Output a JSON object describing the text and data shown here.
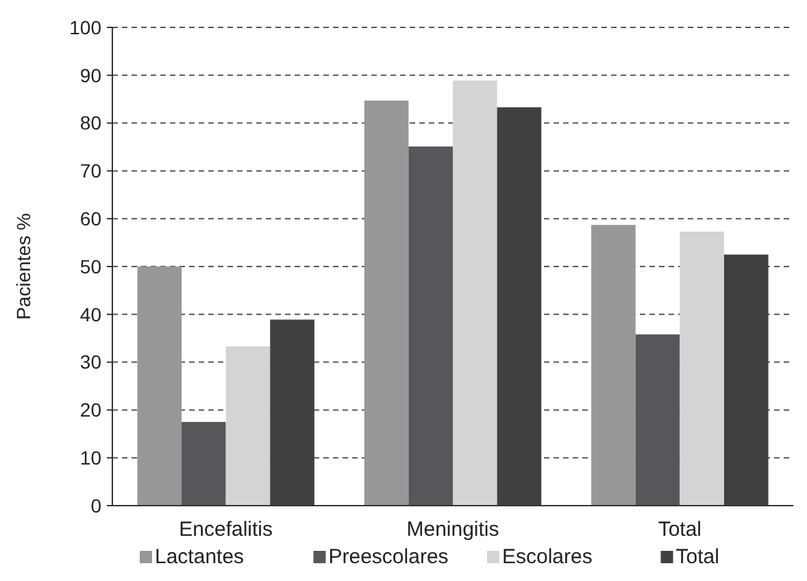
{
  "chart_data": {
    "type": "bar",
    "ylabel": "Pacientes %",
    "categories": [
      "Encefalitis",
      "Meningitis",
      "Total"
    ],
    "series": [
      {
        "name": "Lactantes",
        "color": "#969798",
        "values": [
          50,
          84.7,
          58.7
        ]
      },
      {
        "name": "Preescolares",
        "color": "#56575a",
        "values": [
          17.5,
          75.1,
          35.8
        ]
      },
      {
        "name": "Escolares",
        "color": "#d3d4d6",
        "values": [
          33.3,
          88.9,
          57.3
        ]
      },
      {
        "name": "Total",
        "color": "#404040",
        "values": [
          38.9,
          83.3,
          52.5
        ]
      }
    ],
    "ylim": [
      0,
      100
    ],
    "yticks": [
      0,
      10,
      20,
      30,
      40,
      50,
      60,
      70,
      80,
      90,
      100
    ],
    "grid": "y",
    "legend": "bottom"
  }
}
